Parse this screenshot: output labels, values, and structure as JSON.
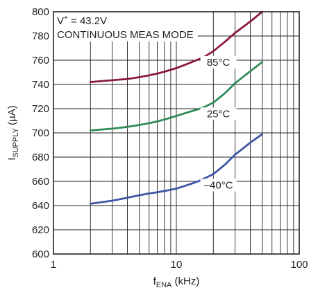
{
  "chart_data": {
    "type": "line",
    "xscale": "log",
    "xlim": [
      1,
      100
    ],
    "ylim": [
      600,
      800
    ],
    "xticks": [
      1,
      10,
      100
    ],
    "yticks": [
      600,
      620,
      640,
      660,
      680,
      700,
      720,
      740,
      760,
      780,
      800
    ],
    "grid": true,
    "xlabel": {
      "main": "f",
      "sub": "ENA",
      "rest": " (kHz)"
    },
    "ylabel": {
      "main": "I",
      "sub": "SUPPLY",
      "rest": " (µA)"
    },
    "annotations": {
      "line1": {
        "base": "V",
        "sup": "+",
        "rest": " = 43.2V"
      },
      "line2": "CONTINUOUS MEAS MODE"
    },
    "series": [
      {
        "name": "85°C",
        "color": "#8b1a3a",
        "x": [
          2,
          3,
          4,
          5,
          6,
          7,
          8,
          10,
          12,
          15,
          17,
          20,
          25,
          30,
          40,
          50
        ],
        "y": [
          742,
          743.5,
          744.5,
          746,
          747.5,
          749,
          750.5,
          753.5,
          756.5,
          760.5,
          763,
          767.5,
          775.5,
          782.5,
          792,
          800
        ]
      },
      {
        "name": "25°C",
        "color": "#2e8b57",
        "x": [
          2,
          3,
          4,
          5,
          6,
          7,
          8,
          10,
          12,
          15,
          17,
          20,
          25,
          30,
          40,
          50
        ],
        "y": [
          702,
          703.5,
          705,
          706.5,
          708,
          709.5,
          711,
          714,
          716.5,
          719.5,
          721.5,
          725,
          733,
          741,
          751,
          758.5
        ]
      },
      {
        "name": "–40°C",
        "color": "#3f55a5",
        "x": [
          2,
          3,
          4,
          5,
          6,
          7,
          8,
          10,
          12,
          15,
          17,
          20,
          25,
          30,
          40,
          50
        ],
        "y": [
          641.5,
          644,
          646.5,
          648.5,
          650,
          651,
          652,
          654,
          656.5,
          660,
          662.5,
          666,
          674,
          682,
          692,
          699
        ]
      }
    ]
  }
}
